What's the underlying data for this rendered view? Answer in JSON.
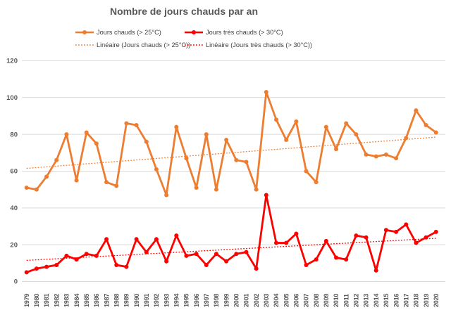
{
  "title": "Nombre de jours chauds par an",
  "legend": {
    "series1": "Jours chauds (> 25°C)",
    "series2": "Jours très chauds (> 30°C)",
    "trend1": "Linéaire (Jours chauds (> 25°C))",
    "trend2": "Linéaire (Jours très chauds (> 30°C))"
  },
  "colors": {
    "series1": "#ED7D31",
    "series2": "#FF0000",
    "gridline": "#D9D9D9",
    "axis_text": "#595959",
    "title_text": "#595959",
    "legend_text": "#404040"
  },
  "chart_data": {
    "type": "line",
    "title": "Nombre de jours chauds par an",
    "x": [
      1979,
      1980,
      1981,
      1982,
      1983,
      1984,
      1985,
      1986,
      1987,
      1988,
      1989,
      1990,
      1991,
      1992,
      1993,
      1994,
      1995,
      1996,
      1997,
      1998,
      1999,
      2000,
      2001,
      2002,
      2003,
      2004,
      2005,
      2006,
      2007,
      2008,
      2009,
      2010,
      2011,
      2012,
      2013,
      2014,
      2015,
      2016,
      2017,
      2018,
      2019,
      2020
    ],
    "series": [
      {
        "name": "Jours chauds (> 25°C)",
        "color": "#ED7D31",
        "values": [
          51,
          50,
          57,
          66,
          80,
          55,
          81,
          75,
          54,
          52,
          86,
          85,
          76,
          61,
          47,
          84,
          67,
          51,
          80,
          50,
          77,
          66,
          65,
          50,
          103,
          88,
          77,
          87,
          60,
          54,
          84,
          72,
          86,
          80,
          69,
          68,
          69,
          67,
          78,
          93,
          85,
          81
        ]
      },
      {
        "name": "Jours très chauds (> 30°C)",
        "color": "#FF0000",
        "values": [
          5,
          7,
          8,
          9,
          14,
          12,
          15,
          14,
          23,
          9,
          8,
          23,
          16,
          23,
          11,
          25,
          14,
          15,
          9,
          15,
          11,
          15,
          16,
          7,
          47,
          21,
          21,
          26,
          9,
          12,
          22,
          13,
          12,
          25,
          24,
          6,
          28,
          27,
          31,
          21,
          24,
          27
        ]
      }
    ],
    "trendlines": [
      {
        "name": "Linéaire (Jours chauds (> 25°C))",
        "color": "#ED7D31",
        "start_value": 61.5,
        "end_value": 78.5
      },
      {
        "name": "Linéaire (Jours très chauds (> 30°C))",
        "color": "#FF0000",
        "start_value": 11.5,
        "end_value": 23.5
      }
    ],
    "ylim": [
      0,
      120
    ],
    "ytick_step": 20,
    "grid": true,
    "legend_position": "top",
    "x_label_rotation": -90
  }
}
